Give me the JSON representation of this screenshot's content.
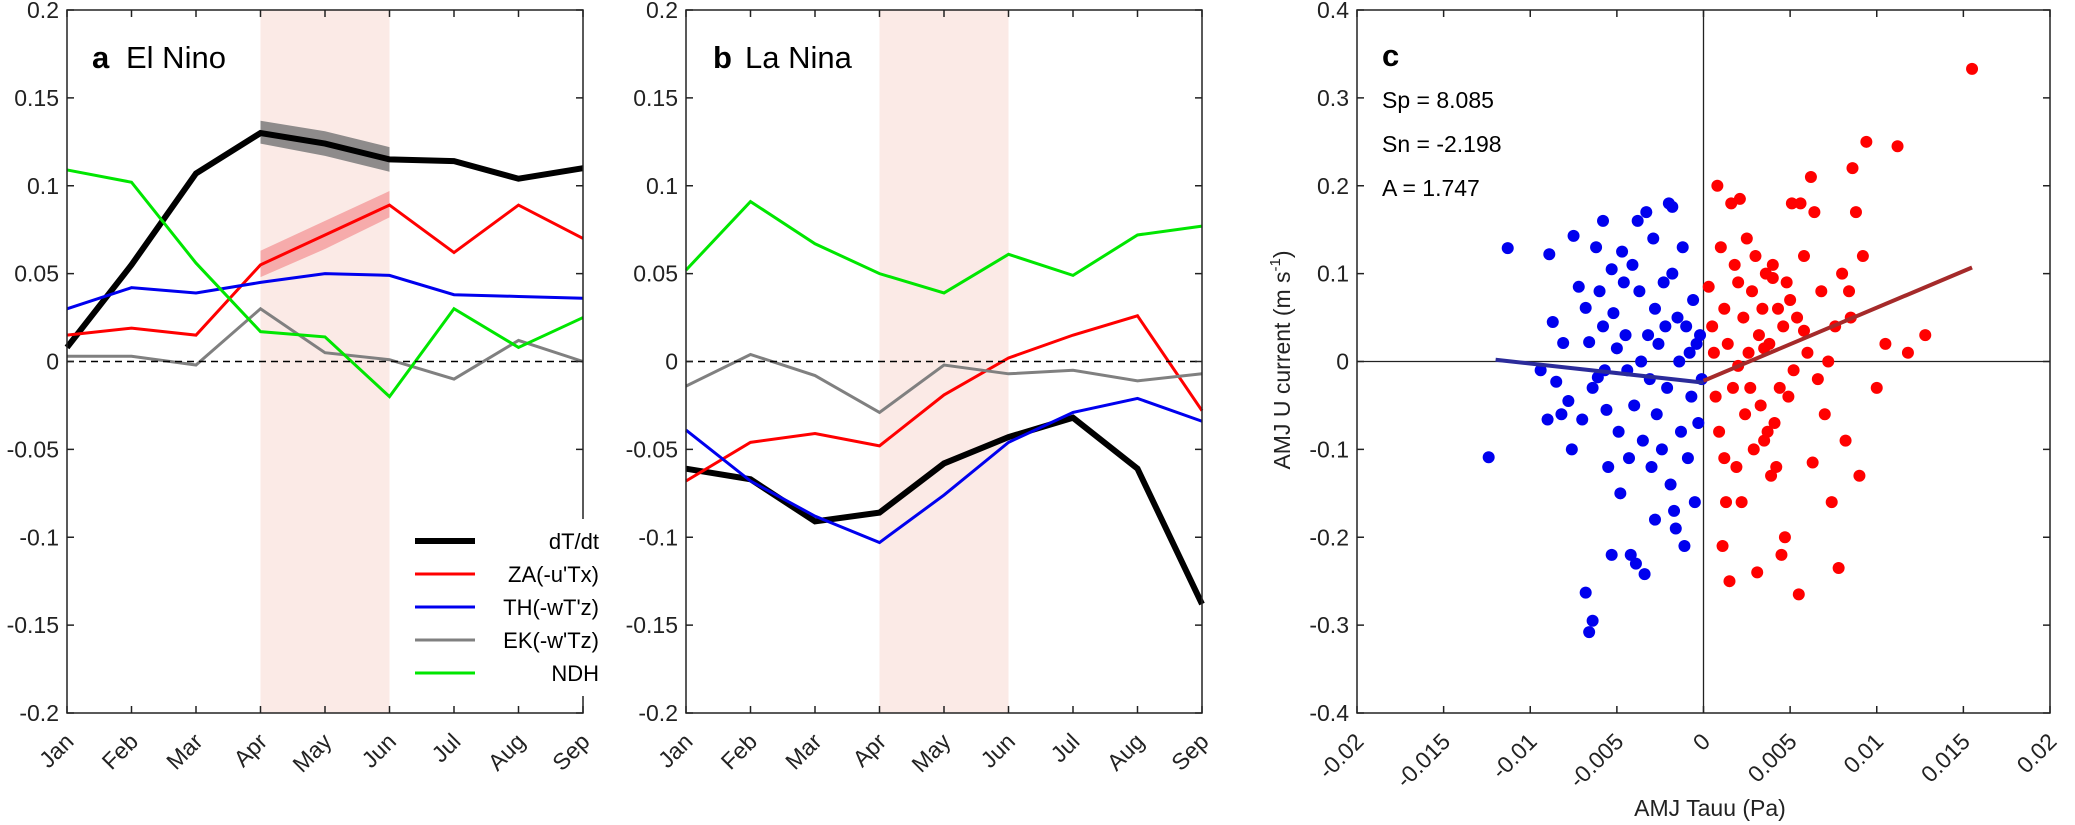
{
  "chart_data": [
    {
      "panel": "a",
      "title_letter": "a",
      "title": "El Nino",
      "type": "line",
      "categories": [
        "Jan",
        "Feb",
        "Mar",
        "Apr",
        "May",
        "Jun",
        "Jul",
        "Aug",
        "Sep"
      ],
      "ylim": [
        -0.2,
        0.2
      ],
      "yticks": [
        -0.2,
        -0.15,
        -0.1,
        -0.05,
        0,
        0.05,
        0.1,
        0.15,
        0.2
      ],
      "ytick_labels": [
        "-0.2",
        "-0.15",
        "-0.1",
        "-0.05",
        "0",
        "0.05",
        "0.1",
        "0.15",
        "0.2"
      ],
      "highlight_range": [
        "Apr",
        "Jun"
      ],
      "highlight_color": "#fbeae6",
      "zero_line": "dashed",
      "series": [
        {
          "name": "dT/dt",
          "color": "#000000",
          "width": 6,
          "values": [
            0.008,
            0.055,
            0.107,
            0.13,
            0.124,
            0.115,
            0.114,
            0.104,
            0.11
          ],
          "band": {
            "from": "Apr",
            "lower": [
              0.124,
              0.117,
              0.108
            ],
            "upper": [
              0.137,
              0.131,
              0.122
            ],
            "color": "#7a7a7a"
          }
        },
        {
          "name": "ZA(-u'Tx)",
          "color": "#ff0000",
          "width": 3,
          "values": [
            0.015,
            0.019,
            0.015,
            0.055,
            0.072,
            0.089,
            0.062,
            0.089,
            0.07
          ],
          "band": {
            "from": "Apr",
            "lower": [
              0.048,
              0.064,
              0.082
            ],
            "upper": [
              0.063,
              0.08,
              0.097
            ],
            "color": "#f5a0a0"
          }
        },
        {
          "name": "TH(-wT'z)",
          "color": "#0000ee",
          "width": 3,
          "values": [
            0.03,
            0.042,
            0.039,
            0.045,
            0.05,
            0.049,
            0.038,
            0.037,
            0.036
          ]
        },
        {
          "name": "EK(-w'Tz)",
          "color": "#808080",
          "width": 3,
          "values": [
            0.003,
            0.003,
            -0.002,
            0.03,
            0.005,
            0.001,
            -0.01,
            0.012,
            0.0
          ]
        },
        {
          "name": "NDH",
          "color": "#00e600",
          "width": 3,
          "values": [
            0.109,
            0.102,
            0.056,
            0.017,
            0.014,
            -0.02,
            0.03,
            0.008,
            0.025
          ]
        }
      ],
      "legend": {
        "placement": "bottom-right",
        "entries": [
          "dT/dt",
          "ZA(-u'Tx)",
          "TH(-wT'z)",
          "EK(-w'Tz)",
          "NDH"
        ]
      }
    },
    {
      "panel": "b",
      "title_letter": "b",
      "title": "La Nina",
      "type": "line",
      "categories": [
        "Jan",
        "Feb",
        "Mar",
        "Apr",
        "May",
        "Jun",
        "Jul",
        "Aug",
        "Sep"
      ],
      "ylim": [
        -0.2,
        0.2
      ],
      "yticks": [
        -0.2,
        -0.15,
        -0.1,
        -0.05,
        0,
        0.05,
        0.1,
        0.15,
        0.2
      ],
      "ytick_labels": [
        "-0.2",
        "-0.15",
        "-0.1",
        "-0.05",
        "0",
        "0.05",
        "0.1",
        "0.15",
        "0.2"
      ],
      "highlight_range": [
        "Apr",
        "Jun"
      ],
      "highlight_color": "#fbeae6",
      "zero_line": "dashed",
      "series": [
        {
          "name": "dT/dt",
          "color": "#000000",
          "width": 6,
          "values": [
            -0.061,
            -0.067,
            -0.091,
            -0.086,
            -0.058,
            -0.043,
            -0.032,
            -0.061,
            -0.138
          ]
        },
        {
          "name": "ZA(-u'Tx)",
          "color": "#ff0000",
          "width": 3,
          "values": [
            -0.068,
            -0.046,
            -0.041,
            -0.048,
            -0.019,
            0.002,
            0.015,
            0.026,
            -0.028
          ]
        },
        {
          "name": "TH(-wT'z)",
          "color": "#0000ee",
          "width": 3,
          "values": [
            -0.039,
            -0.068,
            -0.088,
            -0.103,
            -0.076,
            -0.046,
            -0.029,
            -0.021,
            -0.034
          ]
        },
        {
          "name": "EK(-w'Tz)",
          "color": "#808080",
          "width": 3,
          "values": [
            -0.014,
            0.004,
            -0.008,
            -0.029,
            -0.002,
            -0.007,
            -0.005,
            -0.011,
            -0.007
          ]
        },
        {
          "name": "NDH",
          "color": "#00e600",
          "width": 3,
          "values": [
            0.052,
            0.091,
            0.067,
            0.05,
            0.039,
            0.061,
            0.049,
            0.072,
            0.077
          ]
        }
      ]
    },
    {
      "panel": "c",
      "title_letter": "c",
      "type": "scatter",
      "xlabel": "AMJ Tauu (Pa)",
      "ylabel_main": "AMJ U current (m s",
      "ylabel_sup": "-1",
      "ylabel_close": ")",
      "xlim": [
        -0.02,
        0.02
      ],
      "ylim": [
        -0.4,
        0.4
      ],
      "xticks": [
        -0.02,
        -0.015,
        -0.01,
        -0.005,
        0,
        0.005,
        0.01,
        0.015,
        0.02
      ],
      "xtick_labels": [
        "-0.02",
        "-0.015",
        "-0.01",
        "-0.005",
        "0",
        "0.005",
        "0.01",
        "0.015",
        "0.02"
      ],
      "yticks": [
        -0.4,
        -0.3,
        -0.2,
        -0.1,
        0,
        0.1,
        0.2,
        0.3,
        0.4
      ],
      "ytick_labels": [
        "-0.4",
        "-0.3",
        "-0.2",
        "-0.1",
        "0",
        "0.1",
        "0.2",
        "0.3",
        "0.4"
      ],
      "stats": [
        "Sp = 8.085",
        "Sn = -2.198",
        "A = 1.747"
      ],
      "fit_negative": {
        "color": "#2b2b9a",
        "x": [
          -0.012,
          0.0
        ],
        "y": [
          0.002,
          -0.024
        ]
      },
      "fit_positive": {
        "color": "#a52a2a",
        "x": [
          0.0,
          0.0155
        ],
        "y": [
          -0.022,
          0.107
        ]
      },
      "series": [
        {
          "name": "negative",
          "color": "#0000ee",
          "points": [
            [
              -0.0113,
              0.129
            ],
            [
              -0.0124,
              -0.109
            ],
            [
              -0.0089,
              0.122
            ],
            [
              -0.0087,
              0.045
            ],
            [
              -0.009,
              -0.066
            ],
            [
              -0.0085,
              -0.023
            ],
            [
              -0.0081,
              0.021
            ],
            [
              -0.0078,
              -0.045
            ],
            [
              -0.0075,
              0.143
            ],
            [
              -0.0072,
              0.085
            ],
            [
              -0.007,
              -0.066
            ],
            [
              -0.0068,
              0.061
            ],
            [
              -0.0066,
              0.022
            ],
            [
              -0.0064,
              -0.03
            ],
            [
              -0.0068,
              -0.263
            ],
            [
              -0.0064,
              -0.295
            ],
            [
              -0.0066,
              -0.308
            ],
            [
              -0.0062,
              0.13
            ],
            [
              -0.006,
              0.08
            ],
            [
              -0.0058,
              0.04
            ],
            [
              -0.0057,
              -0.01
            ],
            [
              -0.0056,
              -0.055
            ],
            [
              -0.0055,
              -0.12
            ],
            [
              -0.0053,
              0.105
            ],
            [
              -0.0052,
              0.055
            ],
            [
              -0.005,
              0.015
            ],
            [
              -0.0049,
              -0.08
            ],
            [
              -0.0048,
              -0.15
            ],
            [
              -0.0047,
              0.125
            ],
            [
              -0.0046,
              0.09
            ],
            [
              -0.0045,
              0.03
            ],
            [
              -0.0044,
              -0.01
            ],
            [
              -0.0043,
              -0.11
            ],
            [
              -0.0042,
              -0.22
            ],
            [
              -0.0041,
              0.11
            ],
            [
              -0.004,
              -0.05
            ],
            [
              -0.0039,
              -0.23
            ],
            [
              -0.0038,
              0.16
            ],
            [
              -0.0037,
              0.08
            ],
            [
              -0.0036,
              0.0
            ],
            [
              -0.0035,
              -0.09
            ],
            [
              -0.0034,
              -0.242
            ],
            [
              -0.0033,
              0.17
            ],
            [
              -0.0032,
              0.03
            ],
            [
              -0.0031,
              -0.02
            ],
            [
              -0.003,
              -0.12
            ],
            [
              -0.0029,
              0.14
            ],
            [
              -0.0028,
              0.06
            ],
            [
              -0.0027,
              -0.06
            ],
            [
              -0.0026,
              0.02
            ],
            [
              -0.0024,
              -0.1
            ],
            [
              -0.0023,
              0.09
            ],
            [
              -0.0022,
              0.04
            ],
            [
              -0.0021,
              -0.03
            ],
            [
              -0.002,
              0.18
            ],
            [
              -0.0019,
              -0.14
            ],
            [
              -0.0018,
              0.1
            ],
            [
              -0.0017,
              -0.17
            ],
            [
              -0.0016,
              -0.19
            ],
            [
              -0.0015,
              0.05
            ],
            [
              -0.0014,
              0.0
            ],
            [
              -0.0013,
              -0.08
            ],
            [
              -0.0012,
              0.13
            ],
            [
              -0.0011,
              -0.21
            ],
            [
              -0.001,
              0.04
            ],
            [
              -0.0009,
              -0.11
            ],
            [
              -0.0008,
              0.01
            ],
            [
              -0.0007,
              -0.04
            ],
            [
              -0.0006,
              0.07
            ],
            [
              -0.0005,
              -0.16
            ],
            [
              -0.0004,
              0.02
            ],
            [
              -0.0003,
              -0.07
            ],
            [
              -0.0002,
              0.03
            ],
            [
              -0.0001,
              -0.02
            ],
            [
              -0.0076,
              -0.1
            ],
            [
              -0.0082,
              -0.06
            ],
            [
              -0.0061,
              -0.018
            ],
            [
              -0.0053,
              -0.22
            ],
            [
              -0.0028,
              -0.18
            ],
            [
              -0.0018,
              0.176
            ],
            [
              -0.0094,
              -0.01
            ],
            [
              -0.0058,
              0.16
            ]
          ]
        },
        {
          "name": "positive",
          "color": "#ff0000",
          "points": [
            [
              0.0003,
              0.085
            ],
            [
              0.0005,
              0.04
            ],
            [
              0.0006,
              0.01
            ],
            [
              0.0007,
              -0.04
            ],
            [
              0.0008,
              0.2
            ],
            [
              0.0009,
              -0.08
            ],
            [
              0.001,
              0.13
            ],
            [
              0.0011,
              -0.21
            ],
            [
              0.0012,
              0.06
            ],
            [
              0.0013,
              -0.16
            ],
            [
              0.0014,
              0.02
            ],
            [
              0.0015,
              -0.25
            ],
            [
              0.0016,
              0.18
            ],
            [
              0.0017,
              -0.03
            ],
            [
              0.0018,
              0.11
            ],
            [
              0.0019,
              -0.12
            ],
            [
              0.002,
              0.09
            ],
            [
              0.0021,
              0.185
            ],
            [
              0.0022,
              -0.16
            ],
            [
              0.0023,
              0.05
            ],
            [
              0.0024,
              -0.06
            ],
            [
              0.0025,
              0.14
            ],
            [
              0.0026,
              0.01
            ],
            [
              0.0027,
              -0.03
            ],
            [
              0.0028,
              0.08
            ],
            [
              0.0029,
              -0.1
            ],
            [
              0.003,
              0.12
            ],
            [
              0.0031,
              -0.24
            ],
            [
              0.0032,
              0.03
            ],
            [
              0.0033,
              -0.05
            ],
            [
              0.0034,
              0.06
            ],
            [
              0.0035,
              -0.09
            ],
            [
              0.0036,
              0.1
            ],
            [
              0.0037,
              -0.08
            ],
            [
              0.0038,
              0.02
            ],
            [
              0.0039,
              -0.13
            ],
            [
              0.004,
              0.11
            ],
            [
              0.0041,
              -0.07
            ],
            [
              0.0042,
              -0.12
            ],
            [
              0.0043,
              0.06
            ],
            [
              0.0044,
              -0.03
            ],
            [
              0.0045,
              -0.22
            ],
            [
              0.0046,
              0.04
            ],
            [
              0.0047,
              -0.2
            ],
            [
              0.0048,
              0.09
            ],
            [
              0.0049,
              -0.04
            ],
            [
              0.005,
              0.07
            ],
            [
              0.0051,
              0.18
            ],
            [
              0.0052,
              -0.01
            ],
            [
              0.0054,
              0.05
            ],
            [
              0.0055,
              -0.265
            ],
            [
              0.0056,
              0.18
            ],
            [
              0.0058,
              0.12
            ],
            [
              0.006,
              0.01
            ],
            [
              0.0062,
              0.21
            ],
            [
              0.0064,
              0.17
            ],
            [
              0.0066,
              -0.02
            ],
            [
              0.0068,
              0.08
            ],
            [
              0.007,
              -0.06
            ],
            [
              0.0072,
              0.0
            ],
            [
              0.0074,
              -0.16
            ],
            [
              0.0076,
              0.04
            ],
            [
              0.0078,
              -0.235
            ],
            [
              0.008,
              0.1
            ],
            [
              0.0082,
              -0.09
            ],
            [
              0.0084,
              0.08
            ],
            [
              0.0086,
              0.22
            ],
            [
              0.0088,
              0.17
            ],
            [
              0.009,
              -0.13
            ],
            [
              0.0092,
              0.12
            ],
            [
              0.0094,
              0.25
            ],
            [
              0.01,
              -0.03
            ],
            [
              0.0105,
              0.02
            ],
            [
              0.0112,
              0.245
            ],
            [
              0.0118,
              0.01
            ],
            [
              0.0128,
              0.03
            ],
            [
              0.0155,
              0.333
            ],
            [
              0.004,
              0.095
            ],
            [
              0.0058,
              0.035
            ],
            [
              0.0085,
              0.05
            ],
            [
              0.002,
              -0.005
            ],
            [
              0.0035,
              0.015
            ],
            [
              0.0012,
              -0.11
            ],
            [
              0.0063,
              -0.115
            ]
          ]
        }
      ]
    }
  ]
}
